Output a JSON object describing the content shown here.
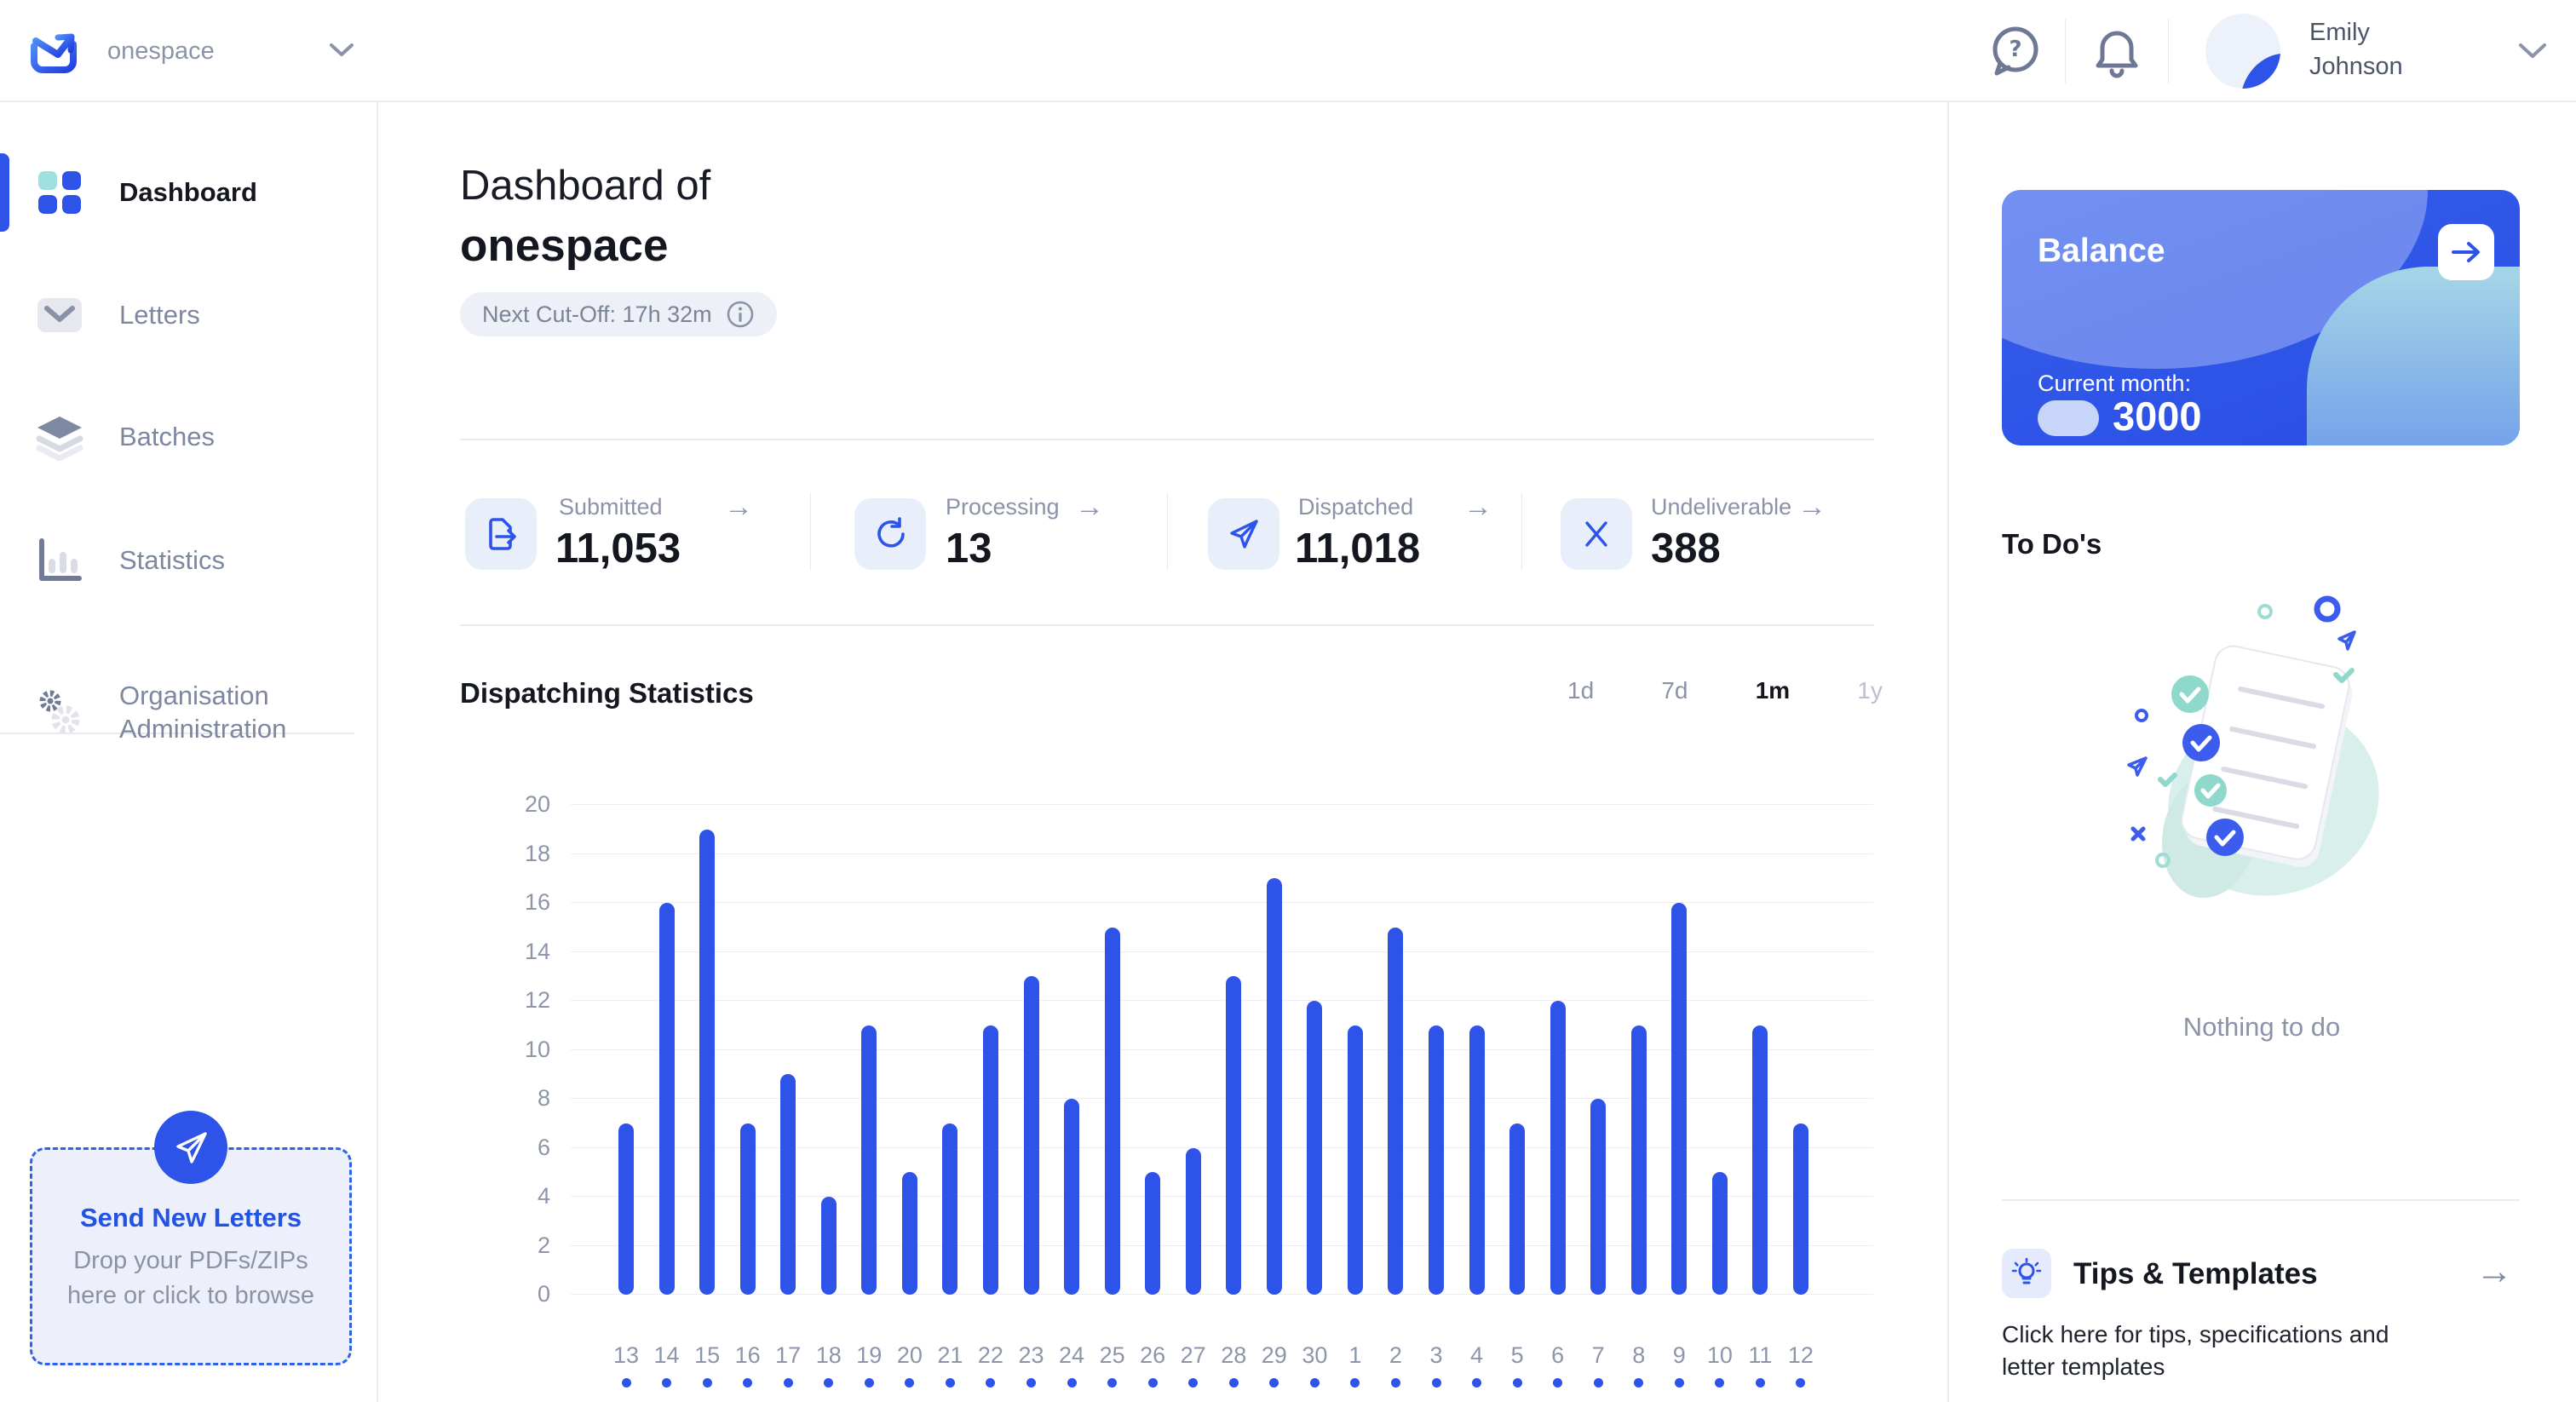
{
  "brand": {
    "name": "onespace"
  },
  "topbar": {
    "user": {
      "name": "Emily Johnson"
    }
  },
  "sidebar": {
    "items": [
      {
        "label": "Dashboard",
        "active": true
      },
      {
        "label": "Letters",
        "active": false
      },
      {
        "label": "Batches",
        "active": false
      },
      {
        "label": "Statistics",
        "active": false
      },
      {
        "label": "Organisation Administration",
        "active": false
      }
    ],
    "upload": {
      "title": "Send New Letters",
      "subtitle": "Drop your PDFs/ZIPs here or click to browse"
    }
  },
  "header": {
    "title_line1": "Dashboard of",
    "title_line2": "onespace",
    "cutoff_badge": "Next Cut-Off: 17h 32m"
  },
  "stats": {
    "items": [
      {
        "label": "Submitted",
        "value": "11,053",
        "icon": "file-export-icon"
      },
      {
        "label": "Processing",
        "value": "13",
        "icon": "refresh-icon"
      },
      {
        "label": "Dispatched",
        "value": "11,018",
        "icon": "paper-plane-icon"
      },
      {
        "label": "Undeliverable",
        "value": "388",
        "icon": "x-mark-icon"
      }
    ]
  },
  "chart_data": {
    "type": "bar",
    "title": "Dispatching Statistics",
    "categories": [
      "13",
      "14",
      "15",
      "16",
      "17",
      "18",
      "19",
      "20",
      "21",
      "22",
      "23",
      "24",
      "25",
      "26",
      "27",
      "28",
      "29",
      "30",
      "1",
      "2",
      "3",
      "4",
      "5",
      "6",
      "7",
      "8",
      "9",
      "10",
      "11",
      "12"
    ],
    "values": [
      7,
      16,
      19,
      7,
      9,
      4,
      11,
      5,
      7,
      11,
      13,
      8,
      15,
      5,
      6,
      13,
      17,
      12,
      11,
      15,
      11,
      11,
      7,
      12,
      8,
      11,
      16,
      5,
      11,
      7
    ],
    "xlabel": "",
    "ylabel": "",
    "ylim": [
      0,
      20
    ],
    "ytick_step": 2,
    "grid": true,
    "legend": "none",
    "bar_color": "#2e53e9",
    "ranges": [
      "1d",
      "7d",
      "1m",
      "1y"
    ],
    "active_range": "1m"
  },
  "balance": {
    "title": "Balance",
    "current_month_label": "Current month:",
    "amount": "3000"
  },
  "todos": {
    "title": "To Do's",
    "empty_text": "Nothing to do"
  },
  "tips": {
    "title": "Tips & Templates",
    "subtitle": "Click here for tips, specifications and letter templates"
  },
  "icons": {
    "arrow_right": "→"
  },
  "colors": {
    "primary_blue": "#2e53e9",
    "teal_accent": "#9fe0e0",
    "text_dark": "#14171f",
    "text_gray": "#8a93a8",
    "border": "#e8eaf0",
    "card_blue": "#2a4ce4"
  }
}
